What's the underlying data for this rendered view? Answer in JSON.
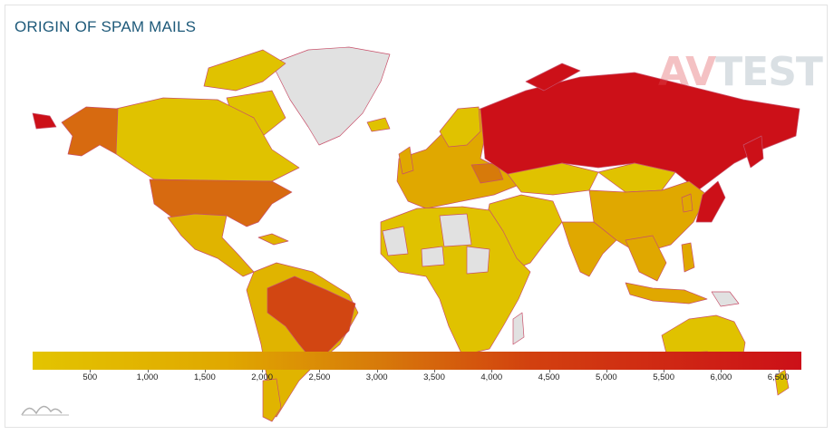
{
  "title": "ORIGIN OF SPAM MAILS",
  "logo": {
    "av": "AV",
    "test": "TEST"
  },
  "legend": {
    "min": 0,
    "max": 6700,
    "tick_labels": [
      "500",
      "1,000",
      "1,500",
      "2,000",
      "2,500",
      "3,000",
      "3,500",
      "4,000",
      "4,500",
      "5,000",
      "5,500",
      "6,000",
      "6,500"
    ],
    "tick_values": [
      500,
      1000,
      1500,
      2000,
      2500,
      3000,
      3500,
      4000,
      4500,
      5000,
      5500,
      6000,
      6500
    ],
    "colors": [
      "#e3c400",
      "#e0a800",
      "#d77a0a",
      "#d2400f",
      "#cc1018"
    ]
  },
  "colors": {
    "no_data": "#e1e1e1",
    "border": "#c8506a",
    "title": "#1e5a7a"
  },
  "regions": [
    {
      "name": "Russia",
      "level": 5
    },
    {
      "name": "Japan",
      "level": 5
    },
    {
      "name": "Brazil",
      "level": 4
    },
    {
      "name": "United States",
      "level": 3
    },
    {
      "name": "Alaska",
      "level": 3
    },
    {
      "name": "Ukraine",
      "level": 3
    },
    {
      "name": "China",
      "level": 2
    },
    {
      "name": "India",
      "level": 2
    },
    {
      "name": "Canada",
      "level": 1
    },
    {
      "name": "Mexico",
      "level": 1
    },
    {
      "name": "Australia",
      "level": 1
    },
    {
      "name": "Africa",
      "level": 1
    },
    {
      "name": "Europe",
      "level": 2
    },
    {
      "name": "Kazakhstan",
      "level": 1
    },
    {
      "name": "Middle East",
      "level": 1
    },
    {
      "name": "Southeast Asia",
      "level": 2
    },
    {
      "name": "South America",
      "level": 1
    },
    {
      "name": "Greenland",
      "level": 0
    }
  ]
}
